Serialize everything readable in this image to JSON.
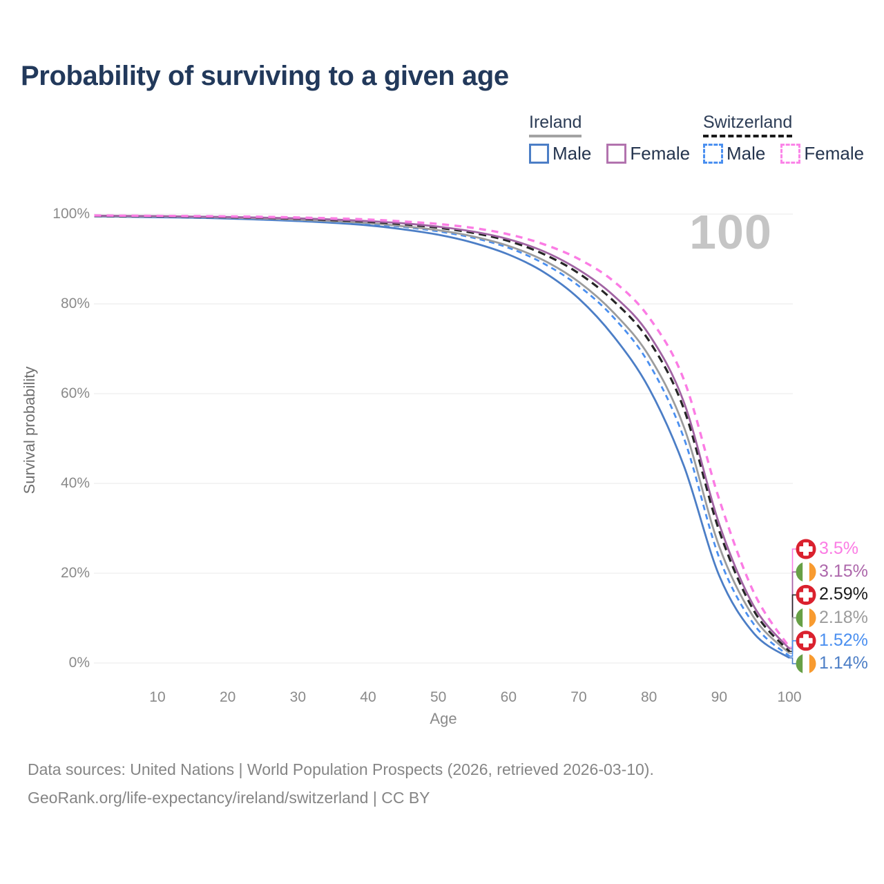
{
  "title": "Probability of surviving to a given age",
  "watermark": "100",
  "legend": {
    "groups": [
      {
        "country": "Ireland",
        "underline_style": "solid",
        "underline_color": "#a3a3a3",
        "items": [
          {
            "label": "Male",
            "box_color": "#4c7ec6",
            "box_dashed": false
          },
          {
            "label": "Female",
            "box_color": "#b273ae",
            "box_dashed": false
          }
        ]
      },
      {
        "country": "Switzerland",
        "underline_style": "dashed",
        "underline_color": "#1a1a1a",
        "items": [
          {
            "label": "Male",
            "box_color": "#4a8ff0",
            "box_dashed": true
          },
          {
            "label": "Female",
            "box_color": "#fb84e8",
            "box_dashed": true
          }
        ]
      }
    ]
  },
  "chart_data": {
    "type": "line",
    "title": "Probability of surviving to a given age",
    "xlabel": "Age",
    "ylabel": "Survival probability",
    "x_range": [
      1,
      100
    ],
    "y_range": [
      0,
      100
    ],
    "x_ticks": [
      10,
      20,
      30,
      40,
      50,
      60,
      70,
      80,
      90,
      100
    ],
    "y_ticks": [
      0,
      20,
      40,
      60,
      80,
      100
    ],
    "y_tick_suffix": "%",
    "grid": "horizontal",
    "legend_position": "top-right",
    "ages": [
      1,
      5,
      10,
      15,
      20,
      25,
      30,
      35,
      40,
      45,
      50,
      55,
      60,
      65,
      70,
      75,
      80,
      85,
      90,
      95,
      100
    ],
    "series": [
      {
        "name": "Switzerland — Female",
        "country": "switzerland",
        "sex": "female",
        "color": "#fb7ce4",
        "dash_pattern": "10 8",
        "stroke_width": 3.4,
        "end_label": "3.5%",
        "end_label_color": "#fb7ce4",
        "values": [
          99.7,
          99.65,
          99.6,
          99.55,
          99.5,
          99.4,
          99.25,
          99.05,
          98.8,
          98.35,
          97.8,
          96.9,
          95.5,
          93.3,
          90.0,
          85.0,
          77.0,
          63.0,
          36.5,
          15.5,
          3.5
        ]
      },
      {
        "name": "Ireland — Female",
        "country": "ireland",
        "sex": "female",
        "color": "#a164a3",
        "dash_pattern": null,
        "stroke_width": 2.8,
        "end_label": "3.15%",
        "end_label_color": "#ad67ab",
        "values": [
          99.65,
          99.6,
          99.55,
          99.45,
          99.35,
          99.2,
          99.05,
          98.8,
          98.45,
          97.95,
          97.2,
          96.1,
          94.4,
          91.7,
          87.6,
          81.8,
          73.2,
          58.0,
          31.0,
          12.5,
          3.15
        ]
      },
      {
        "name": "Switzerland — Total",
        "country": "switzerland",
        "sex": "total",
        "color": "#262626",
        "dash_pattern": "11 7",
        "stroke_width": 3.2,
        "end_label": "2.59%",
        "end_label_color": "#1a1a1a",
        "values": [
          99.6,
          99.55,
          99.5,
          99.4,
          99.3,
          99.15,
          98.95,
          98.65,
          98.3,
          97.75,
          96.95,
          95.8,
          94.0,
          91.1,
          86.8,
          80.6,
          71.8,
          56.5,
          29.5,
          11.5,
          2.59
        ]
      },
      {
        "name": "Ireland — Total",
        "country": "ireland",
        "sex": "total",
        "color": "#9c9c9c",
        "dash_pattern": null,
        "stroke_width": 2.8,
        "end_label": "2.18%",
        "end_label_color": "#9c9c9c",
        "values": [
          99.55,
          99.5,
          99.45,
          99.35,
          99.2,
          99.0,
          98.75,
          98.4,
          98.0,
          97.3,
          96.4,
          95.0,
          92.9,
          89.7,
          84.9,
          78.0,
          68.4,
          52.5,
          26.0,
          10.0,
          2.18
        ]
      },
      {
        "name": "Switzerland — Male",
        "country": "switzerland",
        "sex": "male",
        "color": "#4a8ff0",
        "dash_pattern": "8 6",
        "stroke_width": 2.8,
        "end_label": "1.52%",
        "end_label_color": "#4a8ff0",
        "values": [
          99.55,
          99.5,
          99.4,
          99.3,
          99.15,
          98.9,
          98.65,
          98.3,
          97.85,
          97.15,
          96.15,
          94.7,
          92.5,
          89.0,
          84.0,
          76.9,
          66.7,
          50.0,
          23.5,
          8.5,
          1.52
        ]
      },
      {
        "name": "Ireland — Male",
        "country": "ireland",
        "sex": "male",
        "color": "#4c7ec6",
        "dash_pattern": null,
        "stroke_width": 2.8,
        "end_label": "1.14%",
        "end_label_color": "#4c7ec6",
        "values": [
          99.5,
          99.4,
          99.3,
          99.2,
          99.0,
          98.75,
          98.45,
          98.05,
          97.5,
          96.6,
          95.4,
          93.6,
          91.0,
          87.1,
          81.2,
          72.7,
          61.2,
          43.8,
          19.5,
          6.5,
          1.14
        ]
      }
    ]
  },
  "flags": {
    "switzerland": {
      "bg": "#da212e",
      "cross": "#ffffff"
    },
    "ireland": {
      "green": "#67a046",
      "white": "#ffffff",
      "orange": "#f89b30"
    }
  },
  "footer": {
    "line1": "Data sources: United Nations | World Population Prospects (2026, retrieved 2026-03-10).",
    "line2": "GeoRank.org/life-expectancy/ireland/switzerland | CC BY"
  }
}
